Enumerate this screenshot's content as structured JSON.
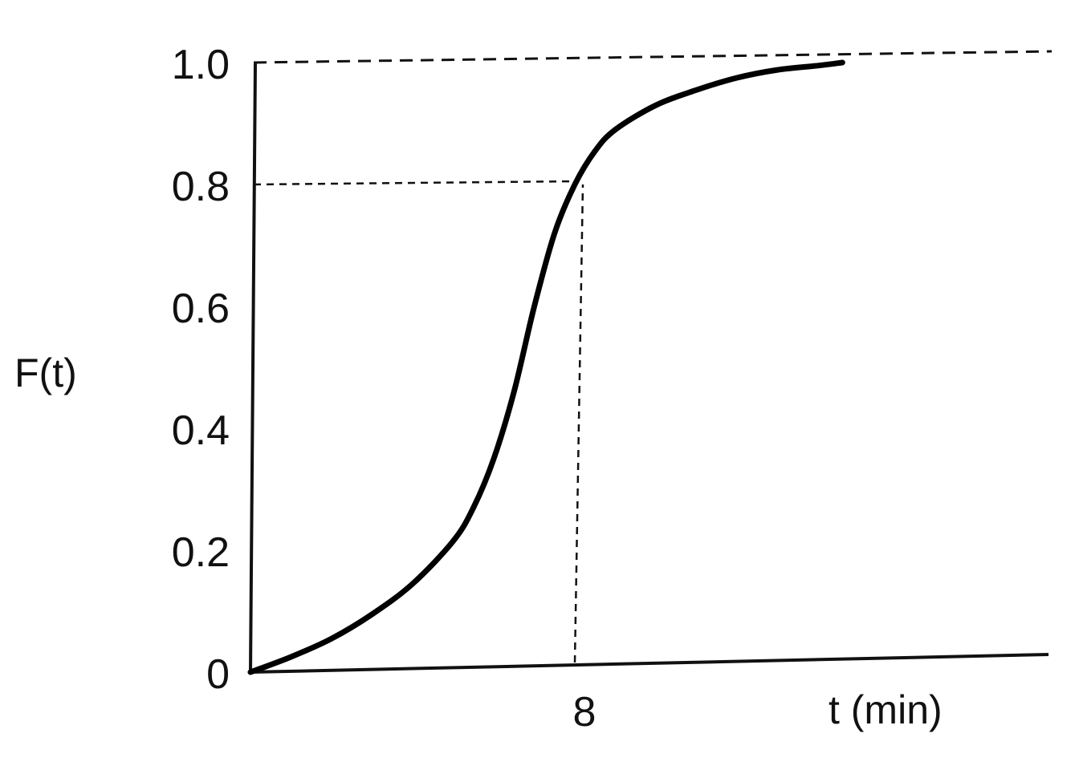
{
  "chart_data": {
    "type": "line",
    "title": "",
    "ylabel": "F(t)",
    "xlabel": "t (min)",
    "xlim": [
      0,
      16
    ],
    "ylim": [
      0,
      1.0
    ],
    "y_ticks": [
      {
        "value": 0,
        "label": "0"
      },
      {
        "value": 0.2,
        "label": "0.2"
      },
      {
        "value": 0.4,
        "label": "0.4"
      },
      {
        "value": 0.6,
        "label": "0.6"
      },
      {
        "value": 0.8,
        "label": "0.8"
      },
      {
        "value": 1.0,
        "label": "1.0"
      }
    ],
    "x_ticks": [
      {
        "value": 8,
        "label": "8"
      }
    ],
    "grid": false,
    "reference_lines": [
      {
        "type": "horizontal",
        "y": 1.0,
        "style": "dashed"
      },
      {
        "type": "horizontal",
        "y": 0.8,
        "x_to": 8,
        "style": "dashed"
      },
      {
        "type": "vertical",
        "x": 8,
        "y_to": 0.8,
        "style": "dashed"
      }
    ],
    "series": [
      {
        "points": [
          {
            "x": 0.0,
            "y": 0.0
          },
          {
            "x": 1.0,
            "y": 0.025
          },
          {
            "x": 2.0,
            "y": 0.055
          },
          {
            "x": 3.0,
            "y": 0.095
          },
          {
            "x": 4.0,
            "y": 0.145
          },
          {
            "x": 5.0,
            "y": 0.215
          },
          {
            "x": 5.5,
            "y": 0.27
          },
          {
            "x": 6.0,
            "y": 0.35
          },
          {
            "x": 6.5,
            "y": 0.46
          },
          {
            "x": 7.0,
            "y": 0.6
          },
          {
            "x": 7.5,
            "y": 0.72
          },
          {
            "x": 8.0,
            "y": 0.8
          },
          {
            "x": 8.5,
            "y": 0.855
          },
          {
            "x": 9.0,
            "y": 0.89
          },
          {
            "x": 10.0,
            "y": 0.93
          },
          {
            "x": 11.0,
            "y": 0.955
          },
          {
            "x": 12.0,
            "y": 0.975
          },
          {
            "x": 13.0,
            "y": 0.988
          },
          {
            "x": 14.0,
            "y": 0.995
          },
          {
            "x": 14.6,
            "y": 1.0
          }
        ]
      }
    ]
  }
}
